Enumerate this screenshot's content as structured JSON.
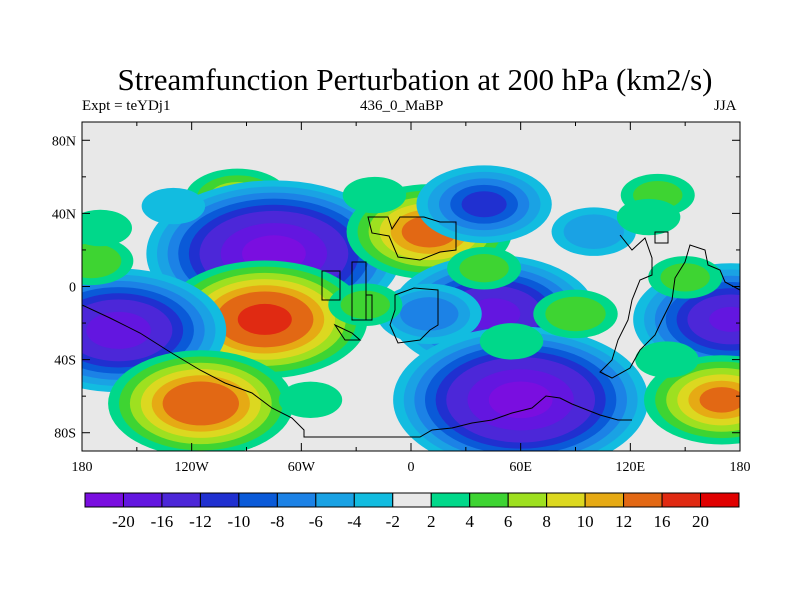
{
  "chart_data": {
    "type": "heatmap",
    "title": "Streamfunction Perturbation at 200 hPa (km2/s)",
    "subtitle_left": "Expt = teYDj1",
    "subtitle_center": "436_0_MaBP",
    "subtitle_right": "JJA",
    "xlabel": "",
    "ylabel": "",
    "x_range": [
      -180,
      180
    ],
    "y_range": [
      -90,
      90
    ],
    "x_ticks": [
      {
        "value": -180,
        "label": "180"
      },
      {
        "value": -120,
        "label": "120W"
      },
      {
        "value": -60,
        "label": "60W"
      },
      {
        "value": 0,
        "label": "0"
      },
      {
        "value": 60,
        "label": "60E"
      },
      {
        "value": 120,
        "label": "120E"
      },
      {
        "value": 180,
        "label": "180"
      }
    ],
    "y_ticks": [
      {
        "value": 80,
        "label": "80N"
      },
      {
        "value": 40,
        "label": "40N"
      },
      {
        "value": 0,
        "label": "0"
      },
      {
        "value": -40,
        "label": "40S"
      },
      {
        "value": -80,
        "label": "80S"
      }
    ],
    "levels": [
      -20,
      -16,
      -12,
      -10,
      -8,
      -6,
      -4,
      -2,
      2,
      4,
      6,
      8,
      10,
      12,
      16,
      20
    ],
    "level_labels": [
      "-20",
      "-16",
      "-12",
      "-10",
      "-8",
      "-6",
      "-4",
      "-2",
      "2",
      "4",
      "6",
      "8",
      "10",
      "12",
      "16",
      "20"
    ],
    "colors": [
      "#7a0ee0",
      "#6316e0",
      "#4c27d8",
      "#2030d0",
      "#0a5ad8",
      "#1c82e6",
      "#1aa2e4",
      "#12bce0",
      "#e8e8e8",
      "#00d88a",
      "#3ed432",
      "#9ee020",
      "#dcd820",
      "#e6aa14",
      "#e26814",
      "#e02a12",
      "#e00000"
    ],
    "anomalies": [
      {
        "lon": -95,
        "lat": 48,
        "value": 7
      },
      {
        "lon": -75,
        "lat": 18,
        "value": -22
      },
      {
        "lon": -80,
        "lat": -18,
        "value": 17
      },
      {
        "lon": -160,
        "lat": -24,
        "value": -18
      },
      {
        "lon": -115,
        "lat": -64,
        "value": 15
      },
      {
        "lon": -55,
        "lat": -62,
        "value": 3
      },
      {
        "lon": -175,
        "lat": 14,
        "value": 5
      },
      {
        "lon": -170,
        "lat": 32,
        "value": 3
      },
      {
        "lon": -130,
        "lat": 44,
        "value": -3
      },
      {
        "lon": 10,
        "lat": 30,
        "value": 13
      },
      {
        "lon": 45,
        "lat": -15,
        "value": -17
      },
      {
        "lon": 10,
        "lat": -15,
        "value": -7
      },
      {
        "lon": 60,
        "lat": -62,
        "value": -22
      },
      {
        "lon": 40,
        "lat": 45,
        "value": -10
      },
      {
        "lon": 100,
        "lat": 30,
        "value": -5
      },
      {
        "lon": 90,
        "lat": -15,
        "value": 5
      },
      {
        "lon": 55,
        "lat": -30,
        "value": 3
      },
      {
        "lon": 40,
        "lat": 10,
        "value": 4
      },
      {
        "lon": 135,
        "lat": 50,
        "value": 4
      },
      {
        "lon": 130,
        "lat": 38,
        "value": 3
      },
      {
        "lon": 175,
        "lat": -18,
        "value": -16
      },
      {
        "lon": 150,
        "lat": 5,
        "value": 4
      },
      {
        "lon": 170,
        "lat": -62,
        "value": 12
      },
      {
        "lon": 140,
        "lat": -40,
        "value": 3
      },
      {
        "lon": -20,
        "lat": 50,
        "value": 3
      },
      {
        "lon": -25,
        "lat": -10,
        "value": 4
      }
    ]
  }
}
